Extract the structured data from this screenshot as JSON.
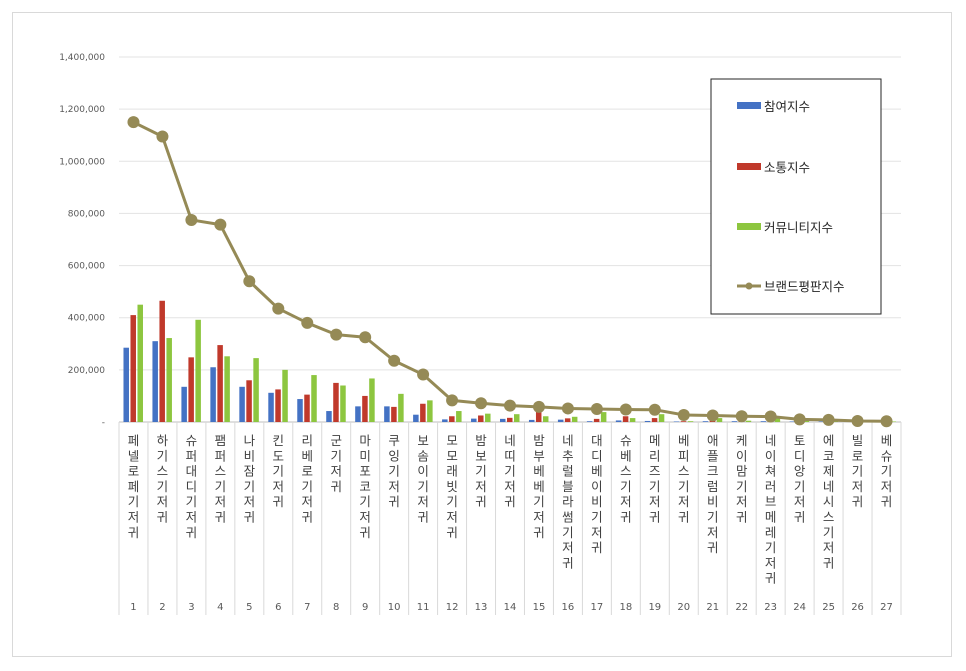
{
  "chart_data": {
    "type": "bar",
    "y_ticks": [
      "-",
      "200,000",
      "400,000",
      "600,000",
      "800,000",
      "1,000,000",
      "1,200,000",
      "1,400,000"
    ],
    "ylim": [
      0,
      1400000
    ],
    "grid": true,
    "legend_position": "top-right",
    "categories": [
      "페넬로페기저귀",
      "하기스기저귀",
      "슈퍼대디기저귀",
      "팸퍼스기저귀",
      "나비잠기저귀",
      "킨도기저귀",
      "리베로기저귀",
      "군기저귀",
      "마미포코기저귀",
      "쿠잉기저귀",
      "보솜이기저귀",
      "모모래빗기저귀",
      "밤보기저귀",
      "네띠기저귀",
      "밤부베베기저귀",
      "네추럴블라썸기저귀",
      "대디베이비기저귀",
      "슈베스기저귀",
      "메리즈기저귀",
      "베피스기저귀",
      "애플크럼비기저귀",
      "케이맘기저귀",
      "네이쳐러브메레기저귀",
      "토디앙기저귀",
      "에코제네시스기저귀",
      "빌로기저귀",
      "베슈기저귀"
    ],
    "ranks": [
      "1",
      "2",
      "3",
      "4",
      "5",
      "6",
      "7",
      "8",
      "9",
      "10",
      "11",
      "12",
      "13",
      "14",
      "15",
      "16",
      "17",
      "18",
      "19",
      "20",
      "21",
      "22",
      "23",
      "24",
      "25",
      "26",
      "27"
    ],
    "series": [
      {
        "name": "참여지수",
        "kind": "bar",
        "color": "#4472c4",
        "values": [
          285000,
          310000,
          135000,
          210000,
          135000,
          112000,
          88000,
          42000,
          60000,
          60000,
          28000,
          10000,
          13000,
          12000,
          8000,
          9000,
          3000,
          6000,
          4000,
          2000,
          3000,
          3000,
          3000,
          2000,
          2000,
          1500,
          1000
        ]
      },
      {
        "name": "소통지수",
        "kind": "bar",
        "color": "#c0392b",
        "values": [
          410000,
          465000,
          248000,
          295000,
          160000,
          125000,
          105000,
          150000,
          100000,
          58000,
          70000,
          22000,
          25000,
          16000,
          40000,
          14000,
          12000,
          22000,
          15000,
          3000,
          8000,
          6000,
          4000,
          3000,
          3000,
          2000,
          1500
        ]
      },
      {
        "name": "커뮤니티지수",
        "kind": "bar",
        "color": "#8dc63f",
        "values": [
          450000,
          322000,
          392000,
          252000,
          245000,
          200000,
          180000,
          140000,
          167000,
          108000,
          83000,
          42000,
          32000,
          30000,
          22000,
          20000,
          38000,
          15000,
          30000,
          3000,
          15000,
          5000,
          14000,
          4000,
          4000,
          3000,
          2000
        ]
      },
      {
        "name": "브랜드평판지수",
        "kind": "line",
        "color": "#958a56",
        "values": [
          1150000,
          1095000,
          775000,
          757000,
          540000,
          435000,
          380000,
          335000,
          325000,
          235000,
          182000,
          83000,
          72000,
          63000,
          58000,
          52000,
          50000,
          48000,
          47000,
          27000,
          25000,
          22000,
          21000,
          10000,
          8000,
          4000,
          3000
        ]
      }
    ]
  }
}
